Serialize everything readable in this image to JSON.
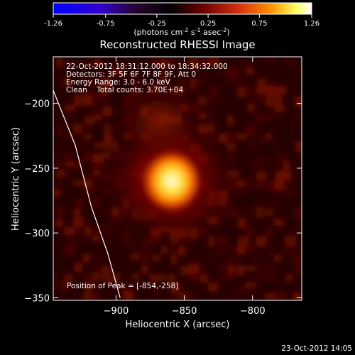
{
  "colorbar": {
    "ticks": [
      "-1.26",
      "-0.75",
      "-0.25",
      "0.25",
      "0.75",
      "1.26"
    ],
    "tick_values": [
      -1.26,
      -0.75,
      -0.25,
      0.25,
      0.75,
      1.26
    ],
    "range": [
      -1.26,
      1.26
    ],
    "unit_main": "(photons cm",
    "unit_exp1": "-2",
    "unit_mid": " s",
    "unit_exp2": "-1",
    "unit_tail": " asec",
    "unit_exp3": "-2",
    "unit_close": ")",
    "colors": [
      "#0000ff",
      "#5500cc",
      "#220022",
      "#000000",
      "#7a0000",
      "#e0401a",
      "#ff9900",
      "#ffff66",
      "#ffffff"
    ]
  },
  "chart_data": {
    "type": "heatmap",
    "title": "Reconstructed RHESSI Image",
    "xlabel": "Heliocentric X (arcsec)",
    "ylabel": "Heliocentric Y (arcsec)",
    "xlim": [
      -946,
      -764
    ],
    "ylim": [
      -352,
      -164
    ],
    "x_ticks": [
      -900,
      -850,
      -800
    ],
    "y_ticks": [
      -200,
      -250,
      -300,
      -350
    ],
    "x_tick_labels": [
      "−900",
      "−850",
      "−800"
    ],
    "y_tick_labels": [
      "−200",
      "−250",
      "−300",
      "−350"
    ],
    "annotations": [
      "22-Oct-2012 18:31:12.000 to 18:34:32.000",
      "Detectors: 3F 5F 6F 7F 8F 9F, Att 0",
      "Energy Range: 3.0 - 6.0 keV",
      "Clean    Total counts: 3.70E+04"
    ],
    "peak_label": "Position of Peak = [-854,-258]",
    "peak": [
      -854,
      -258
    ],
    "limb_curve": [
      [
        -946,
        -190
      ],
      [
        -930,
        -232
      ],
      [
        -918,
        -280
      ],
      [
        -906,
        -316
      ],
      [
        -897,
        -350
      ]
    ]
  },
  "footer": {
    "timestamp": "23-Oct-2012 14:05"
  }
}
